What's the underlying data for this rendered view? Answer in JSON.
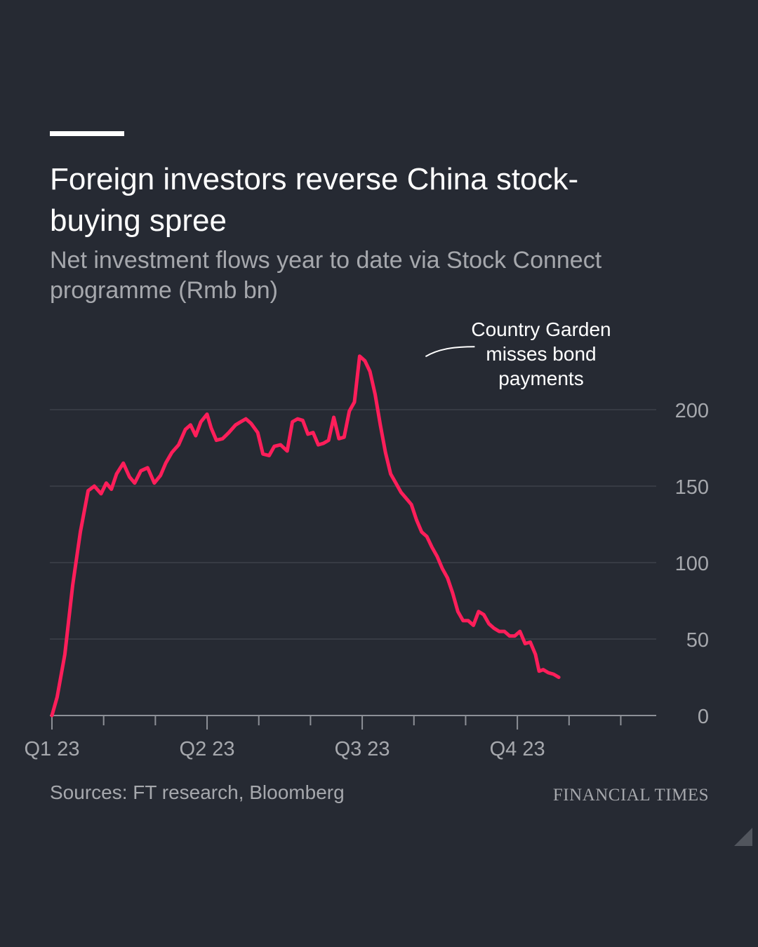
{
  "title": "Foreign investors reverse China stock-buying spree",
  "subtitle": "Net investment flows year to date via Stock Connect programme (Rmb bn)",
  "source": "Sources: FT research, Bloomberg",
  "brand": "FINANCIAL TIMES",
  "colors": {
    "background": "#262a33",
    "line": "#ff1e5a",
    "muted": "#a6a8ad",
    "grid": "#3d414a"
  },
  "chart_data": {
    "type": "line",
    "title": "Foreign investors reverse China stock-buying spree",
    "subtitle": "Net investment flows year to date via Stock Connect programme (Rmb bn)",
    "ylim": [
      0,
      200
    ],
    "yticks": [
      0,
      50,
      100,
      150,
      200
    ],
    "ytick_labels": [
      "0",
      "50",
      "100",
      "150",
      "200"
    ],
    "x_range": [
      0,
      12
    ],
    "xtick_labels": [
      {
        "label": "Q1 23",
        "x": 0
      },
      {
        "label": "Q2 23",
        "x": 3
      },
      {
        "label": "Q3 23",
        "x": 6
      },
      {
        "label": "Q4 23",
        "x": 9
      }
    ],
    "month_ticks": [
      0,
      1,
      2,
      3,
      4,
      5,
      6,
      7,
      8,
      9,
      10,
      11
    ],
    "grid": true,
    "legend": "none",
    "annotation": {
      "text": [
        "Country Garden",
        "misses bond",
        "payments"
      ],
      "x": 7.09,
      "y": 232
    },
    "series": [
      {
        "values": [
          [
            0.0,
            0
          ],
          [
            0.1,
            12
          ],
          [
            0.25,
            40
          ],
          [
            0.4,
            85
          ],
          [
            0.55,
            120
          ],
          [
            0.7,
            147
          ],
          [
            0.82,
            150
          ],
          [
            0.95,
            145
          ],
          [
            1.05,
            152
          ],
          [
            1.15,
            148
          ],
          [
            1.25,
            158
          ],
          [
            1.38,
            165
          ],
          [
            1.5,
            156
          ],
          [
            1.6,
            152
          ],
          [
            1.72,
            160
          ],
          [
            1.85,
            162
          ],
          [
            1.98,
            152
          ],
          [
            2.1,
            157
          ],
          [
            2.2,
            165
          ],
          [
            2.32,
            172
          ],
          [
            2.45,
            177
          ],
          [
            2.58,
            187
          ],
          [
            2.68,
            190
          ],
          [
            2.78,
            183
          ],
          [
            2.88,
            192
          ],
          [
            3.0,
            197
          ],
          [
            3.08,
            188
          ],
          [
            3.18,
            180
          ],
          [
            3.3,
            181
          ],
          [
            3.42,
            185
          ],
          [
            3.55,
            190
          ],
          [
            3.65,
            192
          ],
          [
            3.75,
            194
          ],
          [
            3.85,
            191
          ],
          [
            3.98,
            185
          ],
          [
            4.08,
            171
          ],
          [
            4.2,
            170
          ],
          [
            4.3,
            176
          ],
          [
            4.42,
            177
          ],
          [
            4.55,
            173
          ],
          [
            4.65,
            192
          ],
          [
            4.75,
            194
          ],
          [
            4.85,
            193
          ],
          [
            4.95,
            184
          ],
          [
            5.05,
            185
          ],
          [
            5.15,
            177
          ],
          [
            5.25,
            178
          ],
          [
            5.35,
            180
          ],
          [
            5.45,
            195
          ],
          [
            5.55,
            181
          ],
          [
            5.65,
            182
          ],
          [
            5.75,
            199
          ],
          [
            5.85,
            205
          ],
          [
            5.95,
            235
          ],
          [
            6.05,
            232
          ],
          [
            6.15,
            225
          ],
          [
            6.25,
            210
          ],
          [
            6.35,
            190
          ],
          [
            6.45,
            172
          ],
          [
            6.55,
            158
          ],
          [
            6.65,
            152
          ],
          [
            6.75,
            146
          ],
          [
            6.85,
            142
          ],
          [
            6.95,
            138
          ],
          [
            7.05,
            128
          ],
          [
            7.15,
            120
          ],
          [
            7.25,
            117
          ],
          [
            7.35,
            110
          ],
          [
            7.45,
            104
          ],
          [
            7.55,
            96
          ],
          [
            7.65,
            90
          ],
          [
            7.75,
            80
          ],
          [
            7.85,
            68
          ],
          [
            7.95,
            62
          ],
          [
            8.05,
            62
          ],
          [
            8.15,
            59
          ],
          [
            8.25,
            68
          ],
          [
            8.35,
            66
          ],
          [
            8.45,
            60
          ],
          [
            8.55,
            57
          ],
          [
            8.65,
            55
          ],
          [
            8.75,
            55
          ],
          [
            8.85,
            52
          ],
          [
            8.95,
            52
          ],
          [
            9.05,
            55
          ],
          [
            9.15,
            47
          ],
          [
            9.25,
            48
          ],
          [
            9.35,
            40
          ],
          [
            9.42,
            29
          ],
          [
            9.5,
            30
          ],
          [
            9.6,
            28
          ],
          [
            9.7,
            27
          ],
          [
            9.8,
            25
          ]
        ]
      }
    ]
  }
}
